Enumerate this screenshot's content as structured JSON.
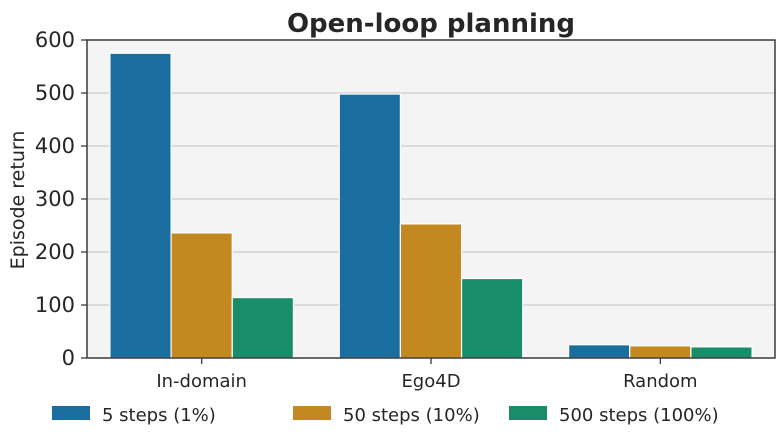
{
  "chart_data": {
    "type": "bar",
    "title": "Open-loop planning",
    "xlabel": "",
    "ylabel": "Episode return",
    "ylim": [
      0,
      600
    ],
    "yticks": [
      0,
      100,
      200,
      300,
      400,
      500,
      600
    ],
    "grid": "horizontal",
    "legend_position": "bottom",
    "categories": [
      "In-domain",
      "Ego4D",
      "Random"
    ],
    "series": [
      {
        "name": "5 steps (1%)",
        "color": "#1a6e9f",
        "values": [
          575,
          498,
          25
        ]
      },
      {
        "name": "50 steps (10%)",
        "color": "#c48820",
        "values": [
          236,
          253,
          23
        ]
      },
      {
        "name": "500 steps (100%)",
        "color": "#178e69",
        "values": [
          114,
          150,
          21
        ]
      }
    ]
  }
}
